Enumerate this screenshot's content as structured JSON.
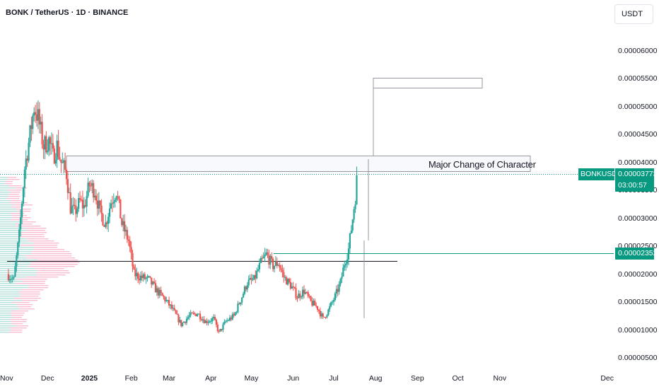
{
  "header": {
    "symbol_title": "BONK / TetherUS · 1D · BINANCE",
    "currency_button": "USDT"
  },
  "annotation": {
    "text": "Major Change of Character"
  },
  "price_tags": {
    "symbol_label": "BONKUSDT",
    "last_price": "0.00003773",
    "countdown": "03:00:57",
    "line_price": "0.00002352"
  },
  "colors": {
    "up": "#26a69a",
    "down": "#ef5350",
    "accent": "#089981",
    "profile_up": "#b2dfdb",
    "profile_down": "#f8bbd0"
  },
  "chart_data": {
    "type": "candlestick",
    "ylim": [
      5e-06,
      6.2e-06
    ],
    "y_ticks": [
      "0.00006000",
      "0.00005500",
      "0.00005000",
      "0.00004500",
      "0.00004000",
      "0.00003500",
      "0.00003000",
      "0.00002500",
      "0.00002000",
      "0.00001500",
      "0.00001000",
      "0.00000500"
    ],
    "x_ticks": [
      "Nov",
      "Dec",
      "2025",
      "Feb",
      "Mar",
      "Apr",
      "May",
      "Jun",
      "Jul",
      "Aug",
      "Sep",
      "Oct",
      "Nov",
      "Dec"
    ],
    "last_price": 3.773e-05,
    "horizontal_line_price": 2.352e-05,
    "support_line_price": 2.22e-05,
    "close_path": [
      [
        "2024-11-01",
        2e-05
      ],
      [
        "2024-11-06",
        1.9e-05
      ],
      [
        "2024-11-10",
        2.7e-05
      ],
      [
        "2024-11-14",
        3.9e-05
      ],
      [
        "2024-11-18",
        4.5e-05
      ],
      [
        "2024-11-21",
        5e-05
      ],
      [
        "2024-11-24",
        4.8e-05
      ],
      [
        "2024-11-28",
        4.3e-05
      ],
      [
        "2024-12-02",
        4.4e-05
      ],
      [
        "2024-12-05",
        4.1e-05
      ],
      [
        "2024-12-08",
        4.3e-05
      ],
      [
        "2024-12-11",
        4e-05
      ],
      [
        "2024-12-15",
        3.8e-05
      ],
      [
        "2024-12-18",
        3.2e-05
      ],
      [
        "2024-12-21",
        3.1e-05
      ],
      [
        "2024-12-25",
        3.3e-05
      ],
      [
        "2024-12-28",
        3.2e-05
      ],
      [
        "2025-01-01",
        3.6e-05
      ],
      [
        "2025-01-05",
        3.5e-05
      ],
      [
        "2025-01-09",
        3.1e-05
      ],
      [
        "2025-01-13",
        2.9e-05
      ],
      [
        "2025-01-17",
        3.3e-05
      ],
      [
        "2025-01-21",
        3.5e-05
      ],
      [
        "2025-01-25",
        2.9e-05
      ],
      [
        "2025-01-30",
        2.6e-05
      ],
      [
        "2025-02-03",
        2e-05
      ],
      [
        "2025-02-08",
        1.95e-05
      ],
      [
        "2025-02-14",
        1.9e-05
      ],
      [
        "2025-02-20",
        1.7e-05
      ],
      [
        "2025-02-26",
        1.55e-05
      ],
      [
        "2025-03-04",
        1.35e-05
      ],
      [
        "2025-03-10",
        1.1e-05
      ],
      [
        "2025-03-16",
        1.25e-05
      ],
      [
        "2025-03-22",
        1.3e-05
      ],
      [
        "2025-03-28",
        1.15e-05
      ],
      [
        "2025-04-03",
        1.2e-05
      ],
      [
        "2025-04-07",
        9.5e-06
      ],
      [
        "2025-04-12",
        1.15e-05
      ],
      [
        "2025-04-18",
        1.25e-05
      ],
      [
        "2025-04-24",
        1.6e-05
      ],
      [
        "2025-04-28",
        1.85e-05
      ],
      [
        "2025-05-03",
        1.9e-05
      ],
      [
        "2025-05-08",
        2.2e-05
      ],
      [
        "2025-05-12",
        2.35e-05
      ],
      [
        "2025-05-17",
        2.15e-05
      ],
      [
        "2025-05-21",
        2.2e-05
      ],
      [
        "2025-05-25",
        1.95e-05
      ],
      [
        "2025-05-30",
        1.8e-05
      ],
      [
        "2025-06-04",
        1.6e-05
      ],
      [
        "2025-06-09",
        1.7e-05
      ],
      [
        "2025-06-14",
        1.5e-05
      ],
      [
        "2025-06-19",
        1.4e-05
      ],
      [
        "2025-06-23",
        1.2e-05
      ],
      [
        "2025-06-27",
        1.35e-05
      ],
      [
        "2025-07-02",
        1.6e-05
      ],
      [
        "2025-07-06",
        1.85e-05
      ],
      [
        "2025-07-09",
        2.2e-05
      ],
      [
        "2025-07-12",
        2.45e-05
      ],
      [
        "2025-07-15",
        3e-05
      ],
      [
        "2025-07-17",
        3.4e-05
      ],
      [
        "2025-07-18",
        3.773e-05
      ]
    ]
  }
}
